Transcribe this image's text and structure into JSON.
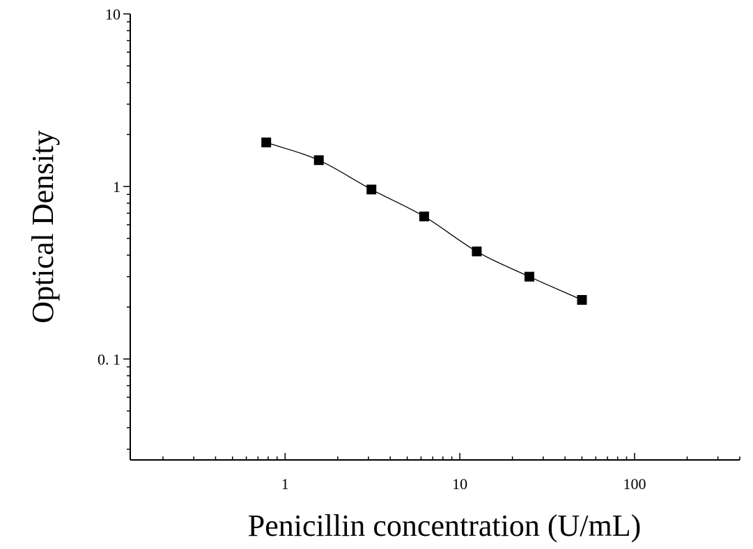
{
  "chart_data": {
    "type": "scatter",
    "title": "",
    "xlabel": "Penicillin concentration (U/mL)",
    "ylabel": "Optical Density",
    "x_scale": "log",
    "y_scale": "log",
    "xlim": [
      0.13,
      400
    ],
    "ylim": [
      0.026,
      10
    ],
    "x_ticks": [
      {
        "value": 1,
        "label": "1"
      },
      {
        "value": 10,
        "label": "10"
      },
      {
        "value": 100,
        "label": "100"
      }
    ],
    "y_ticks": [
      {
        "value": 0.1,
        "label": "0. 1"
      },
      {
        "value": 1,
        "label": "1"
      },
      {
        "value": 10,
        "label": "10"
      }
    ],
    "grid": false,
    "legend": "none",
    "series": [
      {
        "marker": "square",
        "color": "#000000",
        "fit_curve": true,
        "points": [
          {
            "x": 0.78,
            "y": 1.8
          },
          {
            "x": 1.56,
            "y": 1.42
          },
          {
            "x": 3.12,
            "y": 0.96
          },
          {
            "x": 6.25,
            "y": 0.67
          },
          {
            "x": 12.5,
            "y": 0.42
          },
          {
            "x": 25,
            "y": 0.3
          },
          {
            "x": 50,
            "y": 0.22
          }
        ]
      }
    ]
  }
}
